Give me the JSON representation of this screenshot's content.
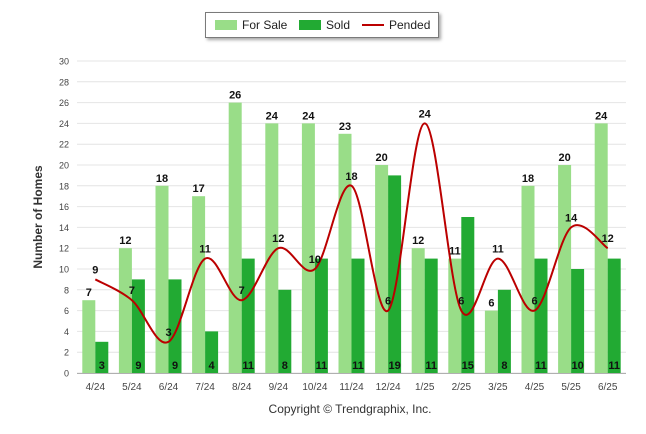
{
  "chart_data": {
    "type": "bar",
    "title": "",
    "xlabel": "",
    "ylabel": "Number of Homes",
    "ylim": [
      0,
      30
    ],
    "yticks": [
      0,
      2,
      4,
      6,
      8,
      10,
      12,
      14,
      16,
      18,
      20,
      22,
      24,
      26,
      28,
      30
    ],
    "grid": true,
    "legend_position": "top-center",
    "categories": [
      "4/24",
      "5/24",
      "6/24",
      "7/24",
      "8/24",
      "9/24",
      "10/24",
      "11/24",
      "12/24",
      "1/25",
      "2/25",
      "3/25",
      "4/25",
      "5/25",
      "6/25"
    ],
    "series": [
      {
        "name": "For Sale",
        "type": "bar",
        "color": "#99dd88",
        "values": [
          7,
          12,
          18,
          17,
          26,
          24,
          24,
          23,
          20,
          12,
          11,
          6,
          18,
          20,
          24
        ]
      },
      {
        "name": "Sold",
        "type": "bar",
        "color": "#22aa33",
        "values": [
          3,
          9,
          9,
          4,
          11,
          8,
          11,
          11,
          19,
          11,
          15,
          8,
          11,
          10,
          11
        ]
      },
      {
        "name": "Pended",
        "type": "line",
        "color": "#bb0000",
        "values": [
          9,
          7,
          3,
          11,
          7,
          12,
          10,
          18,
          6,
          24,
          6,
          11,
          6,
          14,
          12
        ]
      }
    ]
  },
  "footer": {
    "copyright": "Copyright © Trendgraphix, Inc."
  }
}
